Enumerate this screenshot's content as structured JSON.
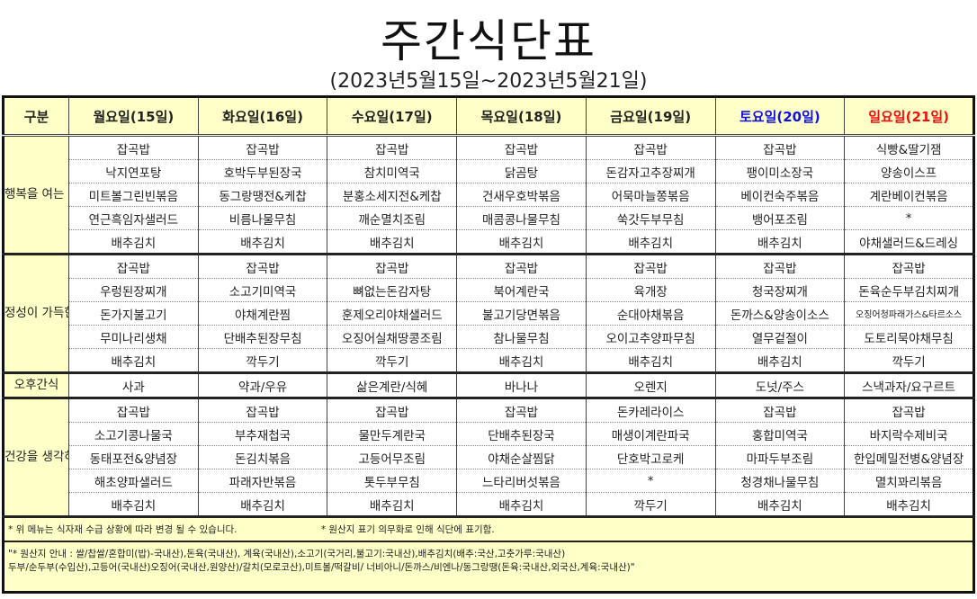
{
  "title": "주간식단표",
  "subtitle": "(2023년5월15일~2023년5월21일)",
  "header": {
    "category": "구분",
    "days": [
      "월요일(15일)",
      "화요일(16일)",
      "수요일(17일)",
      "목요일(18일)",
      "금요일(19일)",
      "토요일(20일)",
      "일요일(21일)"
    ]
  },
  "colors": {
    "header_bg": "#ffffc8",
    "saturday": "#1010e0",
    "sunday": "#f01010"
  },
  "meals": [
    {
      "label": "행복을 여는 아침",
      "rows": [
        [
          "잡곡밥",
          "잡곡밥",
          "잡곡밥",
          "잡곡밥",
          "잡곡밥",
          "잡곡밥",
          "식빵&딸기잼"
        ],
        [
          "낙지연포탕",
          "호박두부된장국",
          "참치미역국",
          "닭곰탕",
          "돈감자고추장찌개",
          "팽이미소장국",
          "양송이스프"
        ],
        [
          "미트볼그린빈볶음",
          "동그랑땡전&케찹",
          "분홍소세지전&케찹",
          "건새우호박볶음",
          "어묵마늘쫑볶음",
          "베이컨숙주볶음",
          "계란베이컨볶음"
        ],
        [
          "연근흑임자샐러드",
          "비름나물무침",
          "깨순멸치조림",
          "매콤콩나물무침",
          "쑥갓두부무침",
          "뱅어포조림",
          "*"
        ],
        [
          "배추김치",
          "배추김치",
          "배추김치",
          "배추김치",
          "배추김치",
          "배추김치",
          "야채샐러드&드레싱"
        ]
      ]
    },
    {
      "label": "정성이 가득한 점심",
      "rows": [
        [
          "잡곡밥",
          "잡곡밥",
          "잡곡밥",
          "잡곡밥",
          "잡곡밥",
          "잡곡밥",
          "잡곡밥"
        ],
        [
          "우렁된장찌개",
          "소고기미역국",
          "뼈없는돈감자탕",
          "북어계란국",
          "육개장",
          "청국장찌개",
          "돈육순두부김치찌개"
        ],
        [
          "돈가지불고기",
          "야채계란찜",
          "훈제오리야채샐러드",
          "불고기당면볶음",
          "순대야채볶음",
          "돈까스&양송이소스",
          "오징어청파래가스&타르소스"
        ],
        [
          "무미나리생채",
          "단배추된장무침",
          "오징어실채땅콩조림",
          "참나물무침",
          "오이고추양파무침",
          "열무겉절이",
          "도토리묵야채무침"
        ],
        [
          "배추김치",
          "깍두기",
          "깍두기",
          "배추김치",
          "배추김치",
          "배추김치",
          "깍두기"
        ]
      ]
    },
    {
      "label": "오후간식",
      "rows": [
        [
          "사과",
          "약과/우유",
          "삶은계란/식혜",
          "바나나",
          "오렌지",
          "도넛/주스",
          "스낵과자/요구르트"
        ]
      ]
    },
    {
      "label": "건강을 생각하는 저녁",
      "rows": [
        [
          "잡곡밥",
          "잡곡밥",
          "잡곡밥",
          "잡곡밥",
          "돈카레라이스",
          "잡곡밥",
          "잡곡밥"
        ],
        [
          "소고기콩나물국",
          "부추재첩국",
          "물만두계란국",
          "단배추된장국",
          "매생이계란파국",
          "홍합미역국",
          "바지락수제비국"
        ],
        [
          "동태포전&양념장",
          "돈김치볶음",
          "고등어무조림",
          "야채순살찜닭",
          "단호박고로케",
          "마파두부조림",
          "한입메밀전병&양념장"
        ],
        [
          "해초양파샐러드",
          "파래자반볶음",
          "톳두부무침",
          "느타리버섯볶음",
          "*",
          "청경채나물무침",
          "멸치꽈리볶음"
        ],
        [
          "배추김치",
          "배추김치",
          "배추김치",
          "배추김치",
          "깍두기",
          "배추김치",
          "배추김치"
        ]
      ]
    }
  ],
  "notes": {
    "change": "* 위 메뉴는 식자재 수급 상황에 따라 변경 될 수 있습니다.",
    "origin_required": "* 원산지 표기 의무화로 인해 식단에 표기함.",
    "origin_line1": "\"* 원산지 안내 : 쌀/찹쌀/혼합미(밥)-국내산),돈육(국내산), 계육(국내산),소고기(국거리,불고기:국내산),배추김치(배추:국산,고춧가루:국내산)",
    "origin_line2": "두부/순두부(수입산),고등어(국내산)오징어(국내산,원양산)/갈치(모로코산),미트볼/떡갈비/ 너비아니/돈까스/비엔나/동그랑땡(돈육:국내산,외국산,계육:국내산)\""
  }
}
